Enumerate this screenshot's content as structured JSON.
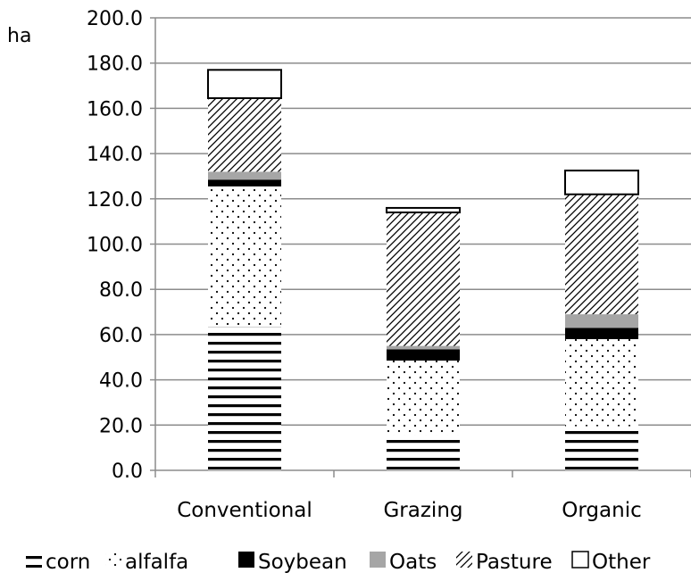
{
  "chart_data": {
    "type": "bar",
    "stacked": true,
    "categories": [
      "Conventional",
      "Grazing",
      "Organic"
    ],
    "series": [
      {
        "name": "corn",
        "pattern": "horizontal-lines",
        "values": [
          63.5,
          15.5,
          19.5
        ]
      },
      {
        "name": "alfalfa",
        "pattern": "dots",
        "values": [
          62.0,
          33.0,
          38.5
        ]
      },
      {
        "name": "Soybean",
        "pattern": "solid-black",
        "values": [
          3.0,
          5.0,
          5.0
        ]
      },
      {
        "name": "Oats",
        "pattern": "solid-gray",
        "values": [
          3.5,
          1.5,
          6.0
        ]
      },
      {
        "name": "Pasture",
        "pattern": "diagonal-hatch",
        "values": [
          32.5,
          59.0,
          53.0
        ]
      },
      {
        "name": "Other",
        "pattern": "white",
        "values": [
          12.5,
          2.0,
          10.5
        ]
      }
    ],
    "ylabel": "ha",
    "xlabel": "",
    "ylim": [
      0,
      200
    ],
    "yticks": [
      "0.0",
      "20.0",
      "40.0",
      "60.0",
      "80.0",
      "100.0",
      "120.0",
      "140.0",
      "160.0",
      "180.0",
      "200.0"
    ],
    "ytick_values": [
      0,
      20,
      40,
      60,
      80,
      100,
      120,
      140,
      160,
      180,
      200
    ],
    "grid": true,
    "legend_position": "bottom",
    "colors": {
      "soybean": "#000000",
      "oats": "#a6a6a6",
      "gridline": "#8c8c8c",
      "axis": "#8c8c8c"
    }
  }
}
